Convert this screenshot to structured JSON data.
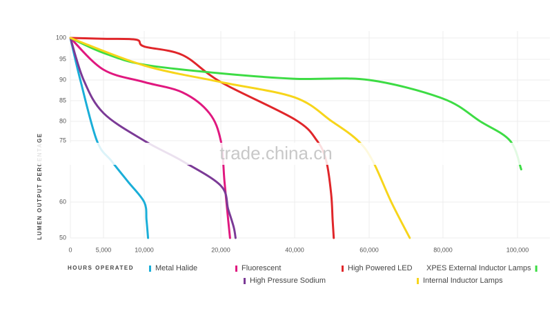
{
  "chart_data": {
    "type": "line",
    "x_label": "HOURS OPERATED",
    "y_label": "LUMEN OUTPUT PERCENTAGE",
    "watermark": "trade.china.cn",
    "xlim": [
      0,
      105000
    ],
    "xticks": [
      0,
      {
        "value": 5000,
        "label": "5,000"
      },
      {
        "value": 10000,
        "label": "10,000"
      },
      {
        "value": 20000,
        "label": "20,000"
      },
      {
        "value": 40000,
        "label": "40,000"
      },
      {
        "value": 60000,
        "label": "60,000"
      },
      {
        "value": 80000,
        "label": "80,000"
      },
      {
        "value": 100000,
        "label": "100,000"
      }
    ],
    "ylim": [
      50,
      100
    ],
    "yticks": [
      100,
      95,
      90,
      85,
      80,
      75,
      60,
      50
    ],
    "grid": true,
    "series": [
      {
        "name": "Metal Halide",
        "color": "#1aaed8",
        "x": [
          0,
          1500,
          4000,
          6000,
          8000,
          10000,
          10300,
          10500
        ],
        "values": [
          100,
          90,
          75,
          70,
          65,
          60,
          55,
          50
        ]
      },
      {
        "name": "Fluorescent",
        "color": "#e0187f",
        "x": [
          0,
          5000,
          10000,
          15000,
          18500,
          20000,
          21000,
          22000,
          22500
        ],
        "values": [
          100,
          92.5,
          89.5,
          87,
          82,
          75,
          65,
          55,
          50
        ]
      },
      {
        "name": "High Powered LED",
        "color": "#e0262a",
        "x": [
          0,
          5000,
          9000,
          10000,
          15000,
          20000,
          40000,
          46000,
          48500,
          49800,
          50200,
          50500
        ],
        "values": [
          100,
          99.8,
          99.6,
          98,
          96,
          89.5,
          80.5,
          75,
          70,
          62,
          55,
          50
        ]
      },
      {
        "name": "XPES External Inductor Lamps",
        "color": "#3ddc44",
        "x": [
          0,
          5000,
          10000,
          20000,
          40000,
          60000,
          80000,
          90000,
          98000,
          101000
        ],
        "values": [
          100,
          96.5,
          93.7,
          91.6,
          90.3,
          90,
          85.5,
          80,
          75,
          68
        ]
      },
      {
        "name": "High Pressure Sodium",
        "color": "#7b3a96",
        "x": [
          0,
          2000,
          5000,
          10000,
          15000,
          20000,
          22000,
          23500,
          24000
        ],
        "values": [
          100,
          90,
          82,
          75,
          70,
          64,
          58,
          53,
          50
        ]
      },
      {
        "name": "Internal Inductor Lamps",
        "color": "#f7d51b",
        "x": [
          0,
          10000,
          20000,
          40000,
          50000,
          57000,
          61000,
          66000,
          71000
        ],
        "values": [
          100,
          93.5,
          89.5,
          85.8,
          80,
          75,
          70,
          60,
          50
        ]
      }
    ]
  }
}
